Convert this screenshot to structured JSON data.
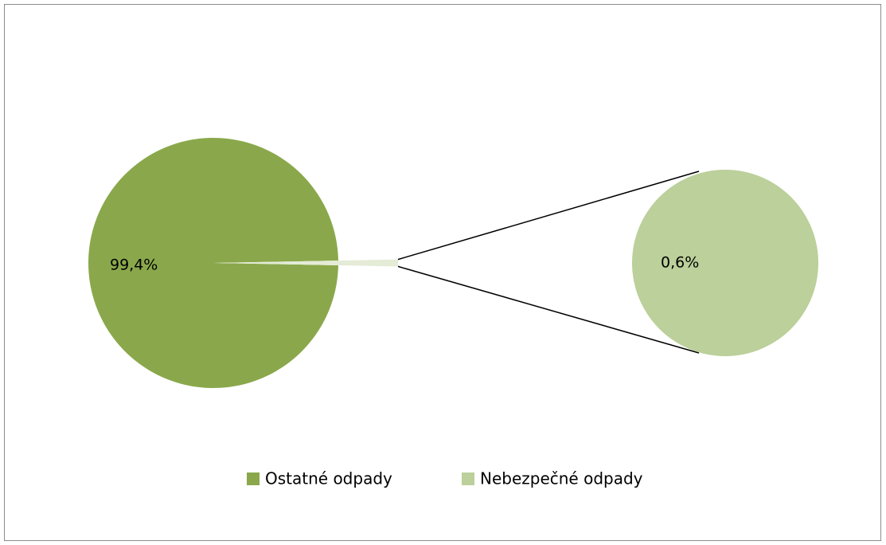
{
  "chart_data": {
    "type": "pie",
    "categories": [
      "Ostatné odpady",
      "Nebezpečné odpady"
    ],
    "values": [
      99.4,
      0.6
    ],
    "value_labels": [
      "99,4%",
      "0,6%"
    ],
    "colors": [
      "#8aa84b",
      "#bbd09a"
    ]
  }
}
